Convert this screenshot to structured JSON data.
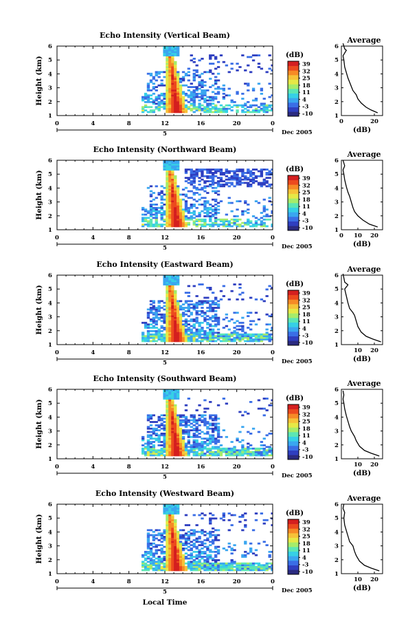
{
  "footer_label": "Local Time",
  "colors": {
    "colormap": [
      "#2b2b80",
      "#2f3fc0",
      "#3a6ee6",
      "#3aa6f0",
      "#36d0e6",
      "#5ce6b4",
      "#a6ec6a",
      "#e6e846",
      "#f6c238",
      "#f68a26",
      "#ec4a1e",
      "#d41f1f"
    ]
  },
  "chart_data": [
    {
      "type": "heatmap",
      "title": "Echo Intensity (Vertical Beam)",
      "ylabel": "Height (km)",
      "xlabel": "",
      "x_ticks": [
        "0",
        "4",
        "8",
        "12",
        "16",
        "20",
        "0"
      ],
      "x_range": [
        0,
        24
      ],
      "y_ticks": [
        "1",
        "2",
        "3",
        "4",
        "5",
        "6"
      ],
      "y_range": [
        1,
        6
      ],
      "day_label": "5",
      "date_label": "Dec 2005",
      "colorbar": {
        "unit": "(dB)",
        "ticks": [
          "39",
          "32",
          "25",
          "18",
          "11",
          "4",
          "-3",
          "-10"
        ],
        "range": [
          -10,
          39
        ]
      },
      "average": {
        "title": "Average",
        "xlabel": "(dB)",
        "x_ticks": [
          "0",
          "20"
        ],
        "x_range": [
          0,
          25
        ],
        "y_ticks": [
          "1",
          "2",
          "3",
          "4",
          "5",
          "6"
        ],
        "profile": [
          [
            22,
            1.2
          ],
          [
            18,
            1.4
          ],
          [
            15,
            1.6
          ],
          [
            12,
            1.9
          ],
          [
            10,
            2.2
          ],
          [
            9,
            2.5
          ],
          [
            7,
            2.8
          ],
          [
            6,
            3.1
          ],
          [
            5,
            3.4
          ],
          [
            4,
            3.7
          ],
          [
            3,
            4.1
          ],
          [
            2,
            4.5
          ],
          [
            1.5,
            5.0
          ],
          [
            1,
            5.3
          ],
          [
            3,
            5.7
          ],
          [
            2,
            5.8
          ],
          [
            1,
            6.2
          ]
        ]
      }
    },
    {
      "type": "heatmap",
      "title": "Echo Intensity (Northward Beam)",
      "ylabel": "Height (km)",
      "xlabel": "",
      "x_ticks": [
        "0",
        "4",
        "8",
        "12",
        "16",
        "20",
        "0"
      ],
      "x_range": [
        0,
        24
      ],
      "y_ticks": [
        "1",
        "2",
        "3",
        "4",
        "5",
        "6"
      ],
      "y_range": [
        1,
        6
      ],
      "day_label": "5",
      "date_label": "Dec 2005",
      "colorbar": {
        "unit": "(dB)",
        "ticks": [
          "39",
          "32",
          "25",
          "18",
          "11",
          "4",
          "-3",
          "-10"
        ],
        "range": [
          -10,
          39
        ]
      },
      "average": {
        "title": "Average",
        "xlabel": "(dB)",
        "x_ticks": [
          "0",
          "10",
          "20"
        ],
        "x_range": [
          0,
          25
        ],
        "y_ticks": [
          "1",
          "2",
          "3",
          "4",
          "5",
          "6"
        ],
        "profile": [
          [
            22,
            1.2
          ],
          [
            17,
            1.4
          ],
          [
            13,
            1.7
          ],
          [
            10,
            2.0
          ],
          [
            8,
            2.3
          ],
          [
            7,
            2.6
          ],
          [
            6,
            3.0
          ],
          [
            5,
            3.4
          ],
          [
            4,
            3.7
          ],
          [
            3,
            4.1
          ],
          [
            2,
            4.6
          ],
          [
            1.5,
            5.0
          ],
          [
            1,
            5.3
          ],
          [
            2,
            5.6
          ],
          [
            1.5,
            5.8
          ],
          [
            1,
            6.0
          ]
        ]
      }
    },
    {
      "type": "heatmap",
      "title": "Echo Intensity (Eastward Beam)",
      "ylabel": "Height (km)",
      "xlabel": "",
      "x_ticks": [
        "0",
        "4",
        "8",
        "12",
        "16",
        "20",
        "0"
      ],
      "x_range": [
        0,
        24
      ],
      "y_ticks": [
        "1",
        "2",
        "3",
        "4",
        "5",
        "6"
      ],
      "y_range": [
        1,
        6
      ],
      "day_label": "5",
      "date_label": "Dec 2005",
      "colorbar": {
        "unit": "(dB)",
        "ticks": [
          "39",
          "32",
          "25",
          "18",
          "11",
          "4",
          "-3",
          "-10"
        ],
        "range": [
          -10,
          39
        ]
      },
      "average": {
        "title": "Average",
        "xlabel": "(dB)",
        "x_ticks": [
          "10",
          "20"
        ],
        "x_range": [
          0,
          25
        ],
        "y_ticks": [
          "1",
          "2",
          "3",
          "4",
          "5",
          "6"
        ],
        "profile": [
          [
            24,
            1.2
          ],
          [
            19,
            1.4
          ],
          [
            15,
            1.6
          ],
          [
            12,
            1.9
          ],
          [
            10,
            2.3
          ],
          [
            9,
            2.7
          ],
          [
            8,
            3.1
          ],
          [
            7,
            3.3
          ],
          [
            5,
            3.6
          ],
          [
            4,
            4.0
          ],
          [
            3,
            4.5
          ],
          [
            2,
            5.0
          ],
          [
            4,
            5.3
          ],
          [
            2,
            5.5
          ],
          [
            1.5,
            5.8
          ],
          [
            1,
            6.1
          ]
        ]
      }
    },
    {
      "type": "heatmap",
      "title": "Echo Intensity (Southward Beam)",
      "ylabel": "Height (km)",
      "xlabel": "",
      "x_ticks": [
        "0",
        "4",
        "8",
        "12",
        "16",
        "20",
        "0"
      ],
      "x_range": [
        0,
        24
      ],
      "y_ticks": [
        "1",
        "2",
        "3",
        "4",
        "5",
        "6"
      ],
      "y_range": [
        1,
        6
      ],
      "day_label": "5",
      "date_label": "Dec 2005",
      "colorbar": {
        "unit": "(dB)",
        "ticks": [
          "39",
          "32",
          "25",
          "18",
          "11",
          "4",
          "-3",
          "-10"
        ],
        "range": [
          -10,
          39
        ]
      },
      "average": {
        "title": "Average",
        "xlabel": "(dB)",
        "x_ticks": [
          "10",
          "20"
        ],
        "x_range": [
          0,
          25
        ],
        "y_ticks": [
          "1",
          "2",
          "3",
          "4",
          "5",
          "6"
        ],
        "profile": [
          [
            23,
            1.2
          ],
          [
            18,
            1.4
          ],
          [
            14,
            1.6
          ],
          [
            11,
            1.9
          ],
          [
            9,
            2.3
          ],
          [
            8,
            2.6
          ],
          [
            6,
            3.0
          ],
          [
            5,
            3.3
          ],
          [
            4,
            3.7
          ],
          [
            3,
            4.1
          ],
          [
            2,
            4.6
          ],
          [
            1.5,
            5.0
          ],
          [
            1,
            5.3
          ],
          [
            1.5,
            5.6
          ],
          [
            1,
            5.9
          ]
        ]
      }
    },
    {
      "type": "heatmap",
      "title": "Echo Intensity (Westward Beam)",
      "ylabel": "Height (km)",
      "xlabel": "",
      "x_ticks": [
        "0",
        "4",
        "8",
        "12",
        "16",
        "20",
        "0"
      ],
      "x_range": [
        0,
        24
      ],
      "y_ticks": [
        "1",
        "2",
        "3",
        "4",
        "5",
        "6"
      ],
      "y_range": [
        1,
        6
      ],
      "day_label": "5",
      "date_label": "Dec 2005",
      "colorbar": {
        "unit": "(dB)",
        "ticks": [
          "39",
          "32",
          "25",
          "18",
          "11",
          "4",
          "-3",
          "-10"
        ],
        "range": [
          -10,
          39
        ]
      },
      "average": {
        "title": "Average",
        "xlabel": "(dB)",
        "x_ticks": [
          "10",
          "20"
        ],
        "x_range": [
          0,
          25
        ],
        "y_ticks": [
          "1",
          "2",
          "3",
          "4",
          "5",
          "6"
        ],
        "profile": [
          [
            23,
            1.2
          ],
          [
            18,
            1.4
          ],
          [
            14,
            1.6
          ],
          [
            11,
            1.9
          ],
          [
            9,
            2.3
          ],
          [
            8,
            2.6
          ],
          [
            7,
            3.0
          ],
          [
            5,
            3.3
          ],
          [
            4,
            3.7
          ],
          [
            3,
            4.1
          ],
          [
            2,
            4.5
          ],
          [
            1.5,
            5.0
          ],
          [
            2,
            5.4
          ],
          [
            1,
            5.7
          ],
          [
            1.5,
            6.0
          ]
        ]
      }
    }
  ]
}
